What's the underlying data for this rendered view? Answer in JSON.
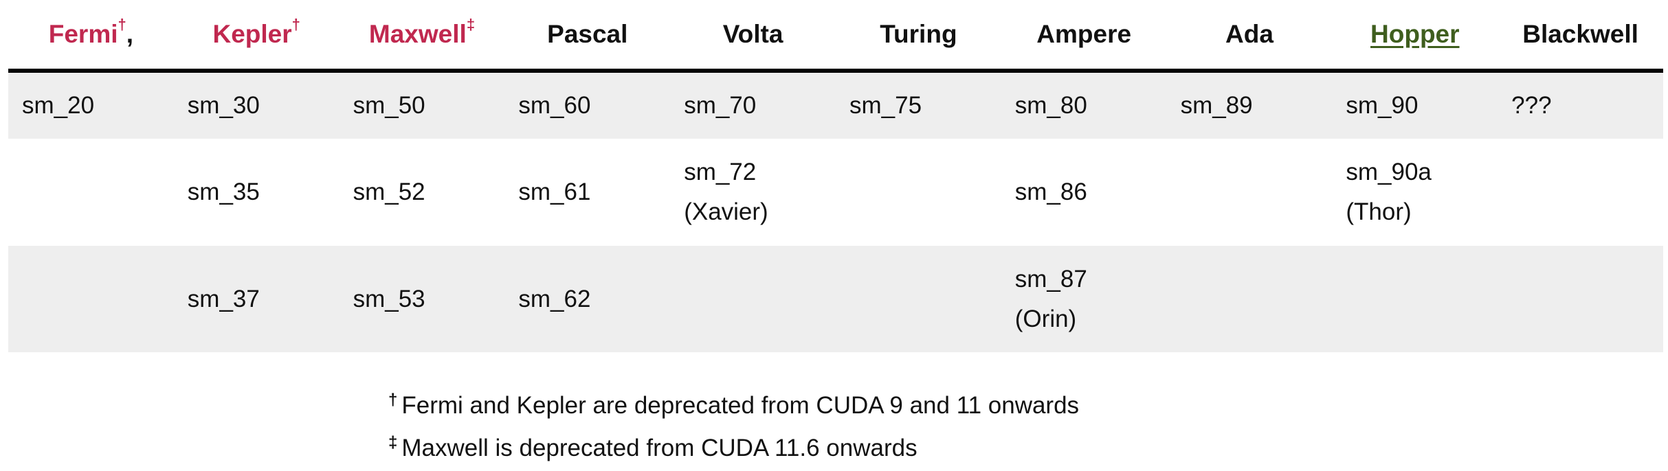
{
  "columns": [
    {
      "name": "Fermi",
      "mark": "†",
      "suffix": ","
    },
    {
      "name": "Kepler",
      "mark": "†",
      "suffix": ""
    },
    {
      "name": "Maxwell",
      "mark": "‡",
      "suffix": ""
    },
    {
      "name": "Pascal",
      "mark": "",
      "suffix": ""
    },
    {
      "name": "Volta",
      "mark": "",
      "suffix": ""
    },
    {
      "name": "Turing",
      "mark": "",
      "suffix": ""
    },
    {
      "name": "Ampere",
      "mark": "",
      "suffix": ""
    },
    {
      "name": "Ada",
      "mark": "",
      "suffix": ""
    },
    {
      "name": "Hopper",
      "mark": "",
      "suffix": ""
    },
    {
      "name": "Blackwell",
      "mark": "",
      "suffix": ""
    }
  ],
  "rows": [
    [
      "sm_20",
      "sm_30",
      "sm_50",
      "sm_60",
      "sm_70",
      "sm_75",
      "sm_80",
      "sm_89",
      "sm_90",
      "???"
    ],
    [
      "",
      "sm_35",
      "sm_52",
      "sm_61",
      "sm_72\n(Xavier)",
      "",
      "sm_86",
      "",
      "sm_90a\n(Thor)",
      ""
    ],
    [
      "",
      "sm_37",
      "sm_53",
      "sm_62",
      "",
      "",
      "sm_87\n(Orin)",
      "",
      "",
      ""
    ]
  ],
  "footnotes": [
    {
      "mark": "†",
      "text": "Fermi and Kepler are deprecated from CUDA 9 and 11 onwards"
    },
    {
      "mark": "‡",
      "text": "Maxwell is deprecated from CUDA 11.6 onwards"
    }
  ],
  "colors": {
    "deprecated": "#c0284f",
    "link": "#3f5e1e",
    "row_shade": "#eeeeee"
  }
}
